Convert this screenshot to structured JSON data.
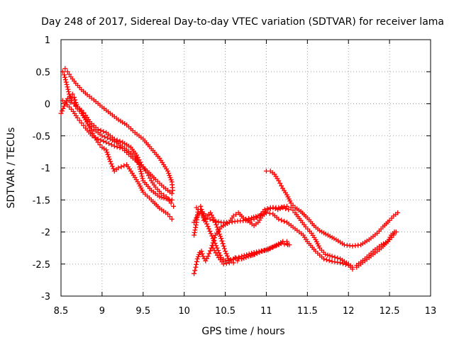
{
  "chart_data": {
    "type": "scatter",
    "title": "Day 248 of 2017, Sidereal Day-to-day VTEC variation (SDTVAR) for receiver lama",
    "xlabel": "GPS time / hours",
    "ylabel": "SDTVAR / TECUs",
    "xlim": [
      8.5,
      13
    ],
    "ylim": [
      -3,
      1
    ],
    "xticks": [
      8.5,
      9,
      9.5,
      10,
      10.5,
      11,
      11.5,
      12,
      12.5,
      13
    ],
    "yticks": [
      1,
      0.5,
      0,
      -0.5,
      -1,
      -1.5,
      -2,
      -2.5,
      -3
    ],
    "grid": true,
    "marker": "+",
    "color": "#ff0000",
    "series": [
      {
        "name": "track-1",
        "points": [
          [
            8.52,
            0.5
          ],
          [
            8.55,
            0.55
          ],
          [
            8.58,
            0.5
          ],
          [
            8.62,
            0.42
          ],
          [
            8.68,
            0.32
          ],
          [
            8.75,
            0.22
          ],
          [
            8.82,
            0.14
          ],
          [
            8.9,
            0.06
          ],
          [
            9.0,
            -0.05
          ],
          [
            9.1,
            -0.15
          ],
          [
            9.2,
            -0.25
          ],
          [
            9.3,
            -0.33
          ],
          [
            9.4,
            -0.45
          ],
          [
            9.5,
            -0.55
          ],
          [
            9.6,
            -0.7
          ],
          [
            9.7,
            -0.85
          ],
          [
            9.8,
            -1.05
          ],
          [
            9.85,
            -1.22
          ],
          [
            9.86,
            -1.35
          ]
        ]
      },
      {
        "name": "track-2",
        "points": [
          [
            8.54,
            0.45
          ],
          [
            8.57,
            0.3
          ],
          [
            8.6,
            0.15
          ],
          [
            8.63,
            0.05
          ],
          [
            8.66,
            0.0
          ],
          [
            8.7,
            -0.05
          ],
          [
            8.75,
            -0.12
          ],
          [
            8.8,
            -0.25
          ],
          [
            8.85,
            -0.38
          ],
          [
            8.9,
            -0.5
          ],
          [
            8.95,
            -0.6
          ],
          [
            9.0,
            -0.68
          ],
          [
            9.05,
            -0.72
          ],
          [
            9.1,
            -0.9
          ],
          [
            9.15,
            -1.05
          ],
          [
            9.2,
            -1.0
          ],
          [
            9.3,
            -0.95
          ],
          [
            9.35,
            -1.05
          ],
          [
            9.4,
            -1.15
          ],
          [
            9.45,
            -1.25
          ],
          [
            9.5,
            -1.38
          ],
          [
            9.6,
            -1.5
          ],
          [
            9.7,
            -1.63
          ],
          [
            9.8,
            -1.72
          ],
          [
            9.85,
            -1.8
          ]
        ]
      },
      {
        "name": "track-3",
        "points": [
          [
            8.52,
            0.05
          ],
          [
            8.55,
            0.02
          ],
          [
            8.6,
            -0.05
          ],
          [
            8.65,
            -0.12
          ],
          [
            8.7,
            -0.22
          ],
          [
            8.75,
            -0.3
          ],
          [
            8.8,
            -0.38
          ],
          [
            8.88,
            -0.5
          ],
          [
            8.95,
            -0.55
          ],
          [
            9.05,
            -0.6
          ],
          [
            9.15,
            -0.66
          ],
          [
            9.25,
            -0.7
          ],
          [
            9.35,
            -0.82
          ],
          [
            9.45,
            -0.93
          ],
          [
            9.55,
            -1.05
          ],
          [
            9.65,
            -1.18
          ],
          [
            9.75,
            -1.3
          ],
          [
            9.85,
            -1.4
          ]
        ]
      },
      {
        "name": "track-4",
        "points": [
          [
            8.5,
            -0.15
          ],
          [
            8.55,
            0.0
          ],
          [
            8.58,
            0.08
          ],
          [
            8.62,
            0.02
          ],
          [
            8.66,
            0.0
          ],
          [
            8.7,
            -0.08
          ],
          [
            8.75,
            -0.15
          ],
          [
            8.8,
            -0.25
          ],
          [
            8.85,
            -0.32
          ],
          [
            8.9,
            -0.4
          ],
          [
            9.0,
            -0.5
          ],
          [
            9.1,
            -0.55
          ],
          [
            9.2,
            -0.62
          ],
          [
            9.3,
            -0.72
          ],
          [
            9.4,
            -0.82
          ],
          [
            9.45,
            -0.95
          ],
          [
            9.5,
            -1.2
          ],
          [
            9.6,
            -1.35
          ],
          [
            9.7,
            -1.45
          ],
          [
            9.78,
            -1.48
          ],
          [
            9.85,
            -1.5
          ]
        ]
      },
      {
        "name": "track-5",
        "points": [
          [
            8.62,
            0.1
          ],
          [
            8.64,
            0.15
          ],
          [
            8.66,
            0.1
          ],
          [
            8.68,
            0.02
          ],
          [
            8.7,
            -0.05
          ],
          [
            8.75,
            -0.1
          ],
          [
            8.8,
            -0.18
          ],
          [
            8.85,
            -0.28
          ],
          [
            8.95,
            -0.4
          ],
          [
            9.05,
            -0.45
          ],
          [
            9.15,
            -0.55
          ],
          [
            9.25,
            -0.6
          ],
          [
            9.35,
            -0.68
          ],
          [
            9.42,
            -0.8
          ],
          [
            9.48,
            -0.95
          ],
          [
            9.55,
            -1.08
          ],
          [
            9.6,
            -1.2
          ],
          [
            9.65,
            -1.3
          ],
          [
            9.72,
            -1.4
          ],
          [
            9.78,
            -1.45
          ],
          [
            9.84,
            -1.55
          ],
          [
            9.87,
            -1.6
          ]
        ]
      },
      {
        "name": "track-6",
        "points": [
          [
            10.12,
            -2.65
          ],
          [
            10.14,
            -2.55
          ],
          [
            10.16,
            -2.42
          ],
          [
            10.19,
            -2.32
          ],
          [
            10.21,
            -2.3
          ],
          [
            10.23,
            -2.38
          ],
          [
            10.26,
            -2.45
          ],
          [
            10.29,
            -2.38
          ],
          [
            10.33,
            -2.25
          ],
          [
            10.38,
            -2.05
          ],
          [
            10.45,
            -1.92
          ],
          [
            10.55,
            -1.85
          ],
          [
            10.65,
            -1.83
          ],
          [
            10.75,
            -1.82
          ],
          [
            10.85,
            -1.8
          ],
          [
            10.92,
            -1.75
          ],
          [
            10.98,
            -1.65
          ],
          [
            11.05,
            -1.62
          ],
          [
            11.15,
            -1.62
          ],
          [
            11.25,
            -1.6
          ],
          [
            11.3,
            -1.62
          ],
          [
            11.35,
            -1.7
          ],
          [
            11.42,
            -1.82
          ],
          [
            11.48,
            -1.92
          ],
          [
            11.55,
            -2.02
          ],
          [
            11.6,
            -2.12
          ],
          [
            11.65,
            -2.25
          ],
          [
            11.72,
            -2.35
          ],
          [
            11.8,
            -2.38
          ],
          [
            11.9,
            -2.42
          ],
          [
            12.0,
            -2.5
          ],
          [
            12.05,
            -2.55
          ],
          [
            12.1,
            -2.52
          ],
          [
            12.2,
            -2.42
          ],
          [
            12.3,
            -2.3
          ],
          [
            12.4,
            -2.2
          ],
          [
            12.48,
            -2.15
          ],
          [
            12.52,
            -2.05
          ],
          [
            12.56,
            -2.0
          ],
          [
            12.58,
            -2.0
          ]
        ]
      },
      {
        "name": "track-7",
        "points": [
          [
            10.12,
            -2.05
          ],
          [
            10.15,
            -1.85
          ],
          [
            10.17,
            -1.65
          ],
          [
            10.2,
            -1.6
          ],
          [
            10.22,
            -1.7
          ],
          [
            10.24,
            -1.82
          ],
          [
            10.28,
            -1.75
          ],
          [
            10.32,
            -1.7
          ],
          [
            10.38,
            -1.85
          ],
          [
            10.42,
            -2.0
          ],
          [
            10.45,
            -2.1
          ],
          [
            10.5,
            -2.3
          ],
          [
            10.55,
            -2.45
          ],
          [
            10.6,
            -2.48
          ],
          [
            10.65,
            -2.45
          ],
          [
            10.7,
            -2.42
          ],
          [
            10.78,
            -2.38
          ],
          [
            10.85,
            -2.35
          ],
          [
            10.95,
            -2.3
          ],
          [
            11.05,
            -2.25
          ],
          [
            11.15,
            -2.2
          ],
          [
            11.2,
            -2.15
          ],
          [
            11.25,
            -2.15
          ],
          [
            11.28,
            -2.2
          ]
        ]
      },
      {
        "name": "track-8",
        "points": [
          [
            10.12,
            -1.85
          ],
          [
            10.16,
            -1.75
          ],
          [
            10.2,
            -1.68
          ],
          [
            10.25,
            -1.8
          ],
          [
            10.3,
            -1.95
          ],
          [
            10.35,
            -2.1
          ],
          [
            10.4,
            -2.25
          ],
          [
            10.45,
            -2.4
          ],
          [
            10.5,
            -2.45
          ],
          [
            10.6,
            -2.42
          ],
          [
            10.7,
            -2.38
          ],
          [
            10.85,
            -2.32
          ],
          [
            11.0,
            -2.28
          ],
          [
            11.1,
            -2.22
          ],
          [
            11.2,
            -2.15
          ],
          [
            11.25,
            -2.18
          ]
        ]
      },
      {
        "name": "track-9",
        "points": [
          [
            10.15,
            -1.62
          ],
          [
            10.2,
            -1.65
          ],
          [
            10.28,
            -1.78
          ],
          [
            10.35,
            -1.82
          ],
          [
            10.45,
            -1.85
          ],
          [
            10.55,
            -1.85
          ],
          [
            10.6,
            -1.75
          ],
          [
            10.66,
            -1.7
          ],
          [
            10.72,
            -1.78
          ],
          [
            10.8,
            -1.85
          ],
          [
            10.85,
            -1.9
          ],
          [
            10.9,
            -1.85
          ],
          [
            10.95,
            -1.75
          ],
          [
            11.0,
            -1.7
          ],
          [
            11.08,
            -1.72
          ],
          [
            11.15,
            -1.8
          ],
          [
            11.25,
            -1.85
          ],
          [
            11.35,
            -1.95
          ],
          [
            11.45,
            -2.05
          ],
          [
            11.5,
            -2.15
          ],
          [
            11.6,
            -2.3
          ],
          [
            11.7,
            -2.42
          ],
          [
            11.8,
            -2.46
          ],
          [
            11.9,
            -2.48
          ],
          [
            12.0,
            -2.52
          ],
          [
            12.05,
            -2.58
          ],
          [
            12.1,
            -2.55
          ],
          [
            12.2,
            -2.45
          ],
          [
            12.3,
            -2.35
          ],
          [
            12.4,
            -2.25
          ],
          [
            12.5,
            -2.12
          ],
          [
            12.55,
            -2.05
          ]
        ]
      },
      {
        "name": "track-10",
        "points": [
          [
            11.0,
            -1.05
          ],
          [
            11.05,
            -1.05
          ],
          [
            11.1,
            -1.1
          ],
          [
            11.15,
            -1.2
          ],
          [
            11.2,
            -1.32
          ],
          [
            11.25,
            -1.42
          ],
          [
            11.3,
            -1.55
          ],
          [
            11.35,
            -1.62
          ],
          [
            11.42,
            -1.68
          ],
          [
            11.5,
            -1.78
          ],
          [
            11.58,
            -1.9
          ],
          [
            11.65,
            -1.98
          ],
          [
            11.75,
            -2.05
          ],
          [
            11.85,
            -2.12
          ],
          [
            11.95,
            -2.2
          ],
          [
            12.05,
            -2.22
          ],
          [
            12.15,
            -2.2
          ],
          [
            12.25,
            -2.12
          ],
          [
            12.35,
            -2.02
          ],
          [
            12.42,
            -1.92
          ],
          [
            12.5,
            -1.82
          ],
          [
            12.55,
            -1.75
          ],
          [
            12.6,
            -1.7
          ]
        ]
      },
      {
        "name": "track-11",
        "points": [
          [
            10.35,
            -2.25
          ],
          [
            10.42,
            -2.4
          ],
          [
            10.48,
            -2.5
          ],
          [
            10.55,
            -2.48
          ],
          [
            10.62,
            -2.4
          ],
          [
            10.7,
            -2.42
          ],
          [
            10.78,
            -2.38
          ],
          [
            10.86,
            -2.35
          ],
          [
            10.94,
            -2.3
          ],
          [
            11.02,
            -2.28
          ],
          [
            11.1,
            -2.22
          ],
          [
            11.18,
            -2.18
          ],
          [
            11.26,
            -2.2
          ]
        ]
      },
      {
        "name": "track-12",
        "points": [
          [
            10.75,
            -1.8
          ],
          [
            10.82,
            -1.78
          ],
          [
            10.9,
            -1.75
          ],
          [
            10.96,
            -1.72
          ],
          [
            11.02,
            -1.65
          ],
          [
            11.08,
            -1.62
          ],
          [
            11.14,
            -1.65
          ],
          [
            11.2,
            -1.62
          ],
          [
            11.27,
            -1.65
          ]
        ]
      }
    ]
  }
}
